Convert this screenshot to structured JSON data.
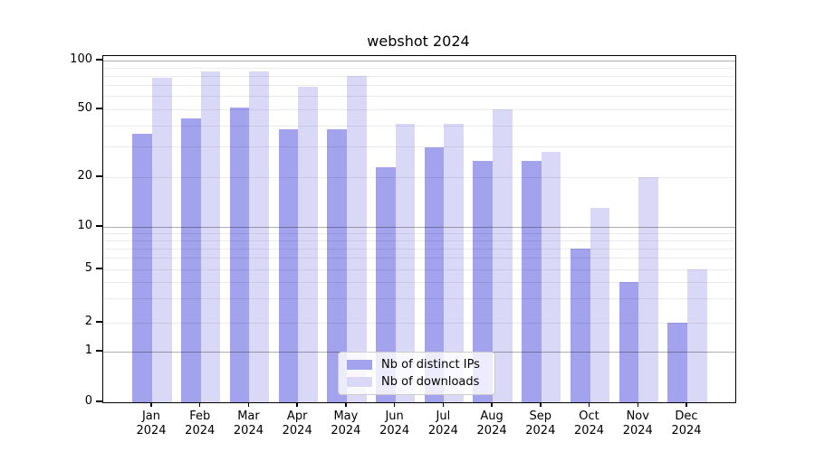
{
  "chart_data": {
    "type": "bar",
    "title": "webshot 2024",
    "categories": [
      "Jan 2024",
      "Feb 2024",
      "Mar 2024",
      "Apr 2024",
      "May 2024",
      "Jun 2024",
      "Jul 2024",
      "Aug 2024",
      "Sep 2024",
      "Oct 2024",
      "Nov 2024",
      "Dec 2024"
    ],
    "series": [
      {
        "name": "Nb of distinct IPs",
        "color": "#a2a2ed",
        "values": [
          36,
          44,
          51,
          38,
          38,
          23,
          30,
          25,
          25,
          7,
          4,
          2
        ]
      },
      {
        "name": "Nb of downloads",
        "color": "#d9d9f7",
        "values": [
          78,
          86,
          86,
          69,
          80,
          41,
          41,
          50,
          28,
          13,
          20,
          5
        ]
      }
    ],
    "xlabel": "",
    "ylabel": "",
    "yscale": "log-like",
    "yticks": [
      100,
      50,
      20,
      10,
      5,
      2,
      1,
      0
    ],
    "ylim": [
      0,
      107
    ],
    "grid": true,
    "grid_minor_values": [
      2,
      3,
      4,
      5,
      6,
      7,
      8,
      9,
      20,
      30,
      40,
      50,
      60,
      70,
      80,
      90
    ],
    "grid_major_values": [
      1,
      10,
      100
    ],
    "legend_position": "lower center",
    "colors": {
      "axis": "#000000",
      "grid_minor": "#ededed",
      "grid_major": "#b3b3b3",
      "legend_border": "#cccccc",
      "text": "#000000"
    }
  }
}
